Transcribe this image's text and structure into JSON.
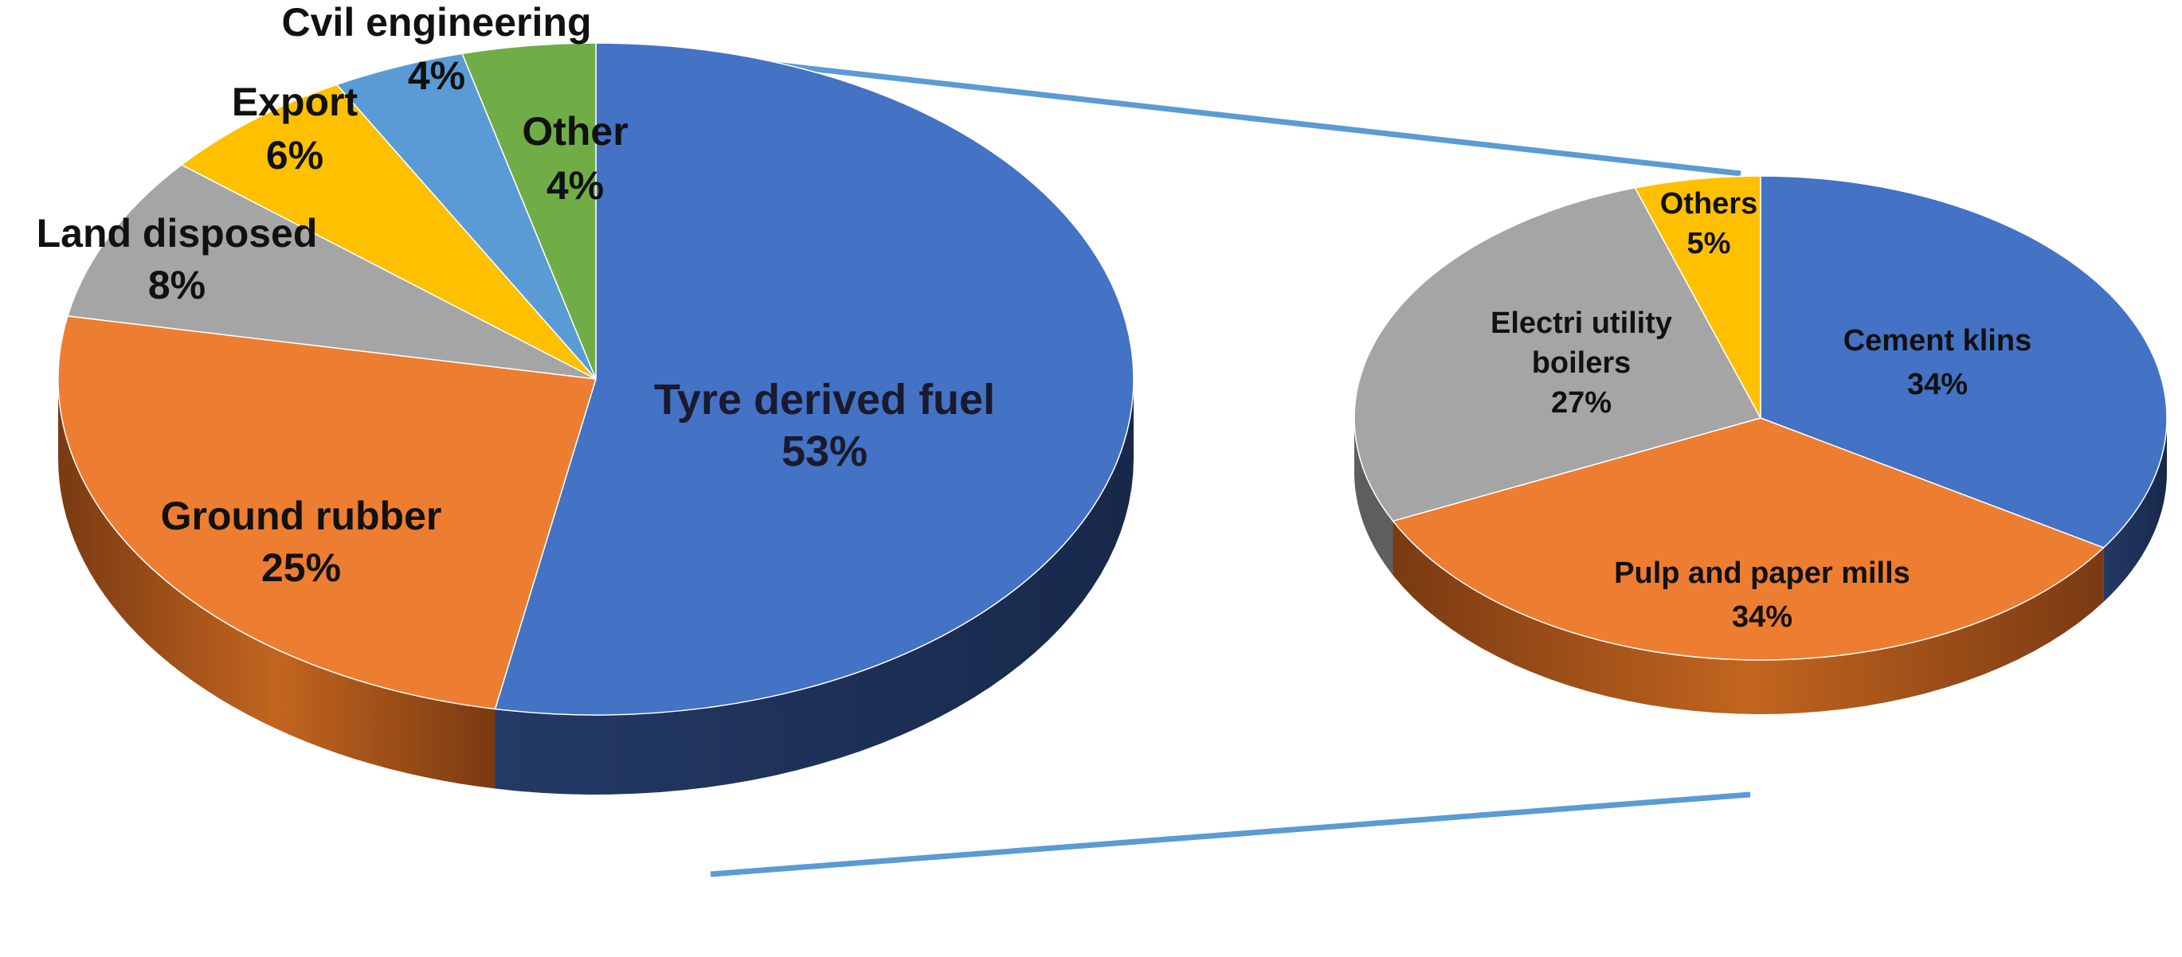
{
  "chart_data": [
    {
      "type": "pie",
      "title": "",
      "slices": [
        {
          "label": "Tyre derived fuel",
          "value": 53,
          "display": "53%",
          "color": "#4472C4",
          "side_color": "#1F3458"
        },
        {
          "label": "Ground rubber",
          "value": 25,
          "display": "25%",
          "color": "#ED7D31",
          "side_color": "#8A4216"
        },
        {
          "label": "Land disposed",
          "value": 8,
          "display": "8%",
          "color": "#A5A5A5",
          "side_color": "#5E5E5E"
        },
        {
          "label": "Export",
          "value": 6,
          "display": "6%",
          "color": "#FFC000",
          "side_color": "#8C6A00"
        },
        {
          "label": "Cvil engineering",
          "value": 4,
          "display": "4%",
          "color": "#5B9BD5",
          "side_color": "#2E5A85"
        },
        {
          "label": "Other",
          "value": 4,
          "display": "4%",
          "color": "#70AD47",
          "side_color": "#3F6A25"
        }
      ],
      "legend": "none"
    },
    {
      "type": "pie",
      "title": "",
      "breakdown_of": "Tyre derived fuel",
      "slices": [
        {
          "label": "Cement klins",
          "value": 34,
          "display": "34%",
          "color": "#4472C4",
          "side_color": "#1F3458"
        },
        {
          "label": "Pulp and paper mills",
          "value": 34,
          "display": "34%",
          "color": "#ED7D31",
          "side_color": "#8A4216"
        },
        {
          "label": "Electri utility boilers",
          "value": 27,
          "display": "27%",
          "color": "#A5A5A5",
          "side_color": "#5E5E5E"
        },
        {
          "label": "Others",
          "value": 5,
          "display": "5%",
          "color": "#FFC000",
          "side_color": "#8C6A00"
        }
      ],
      "legend": "none"
    }
  ],
  "connector_color": "#5B9BD5"
}
